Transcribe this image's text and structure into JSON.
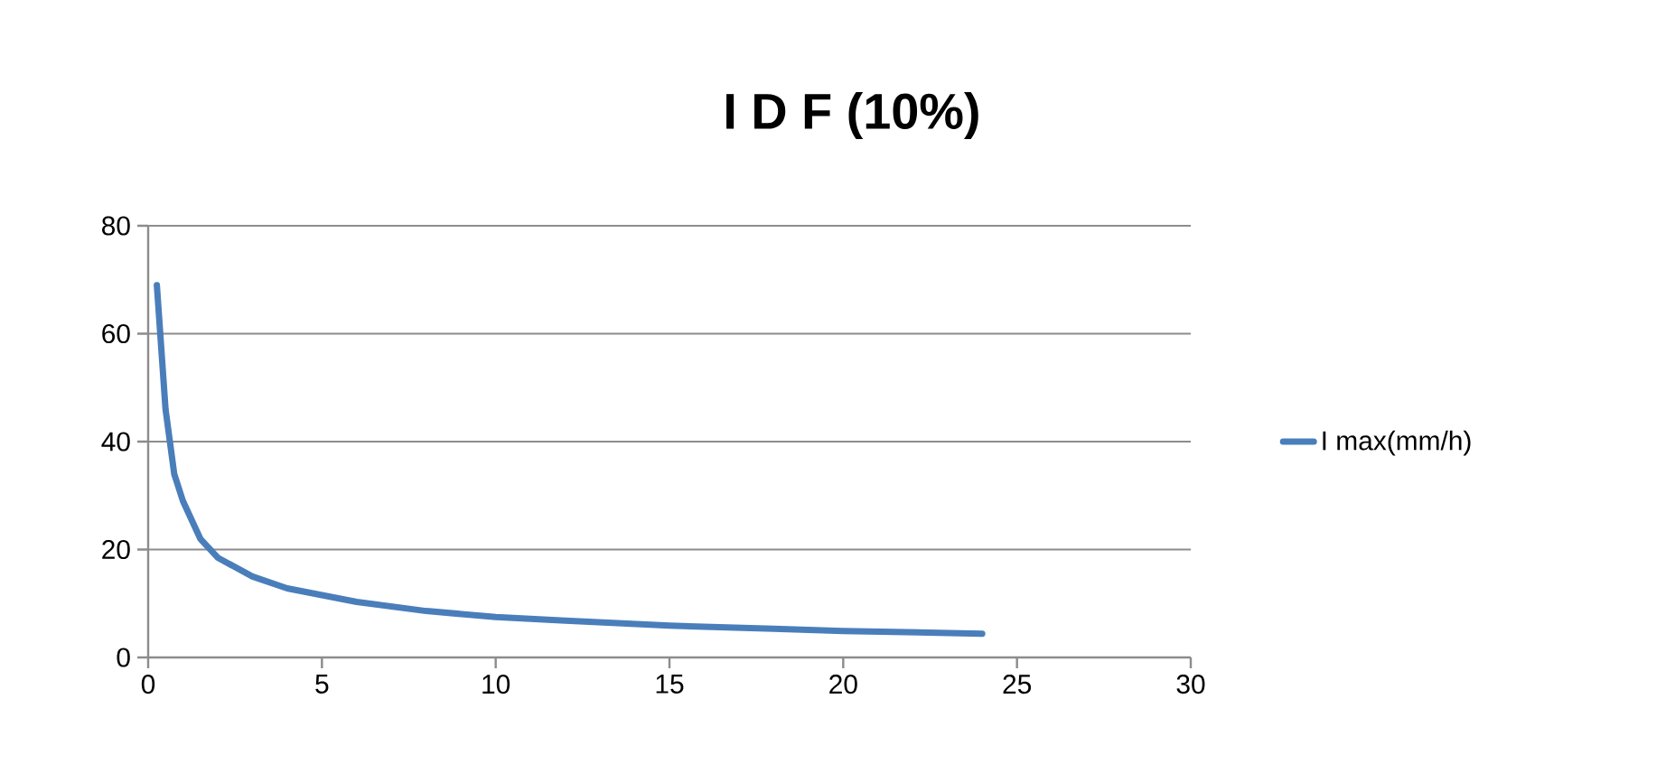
{
  "chart_data": {
    "type": "line",
    "title": "I D F (10%)",
    "x": [
      0.25,
      0.5,
      0.75,
      1,
      1.5,
      2,
      3,
      4,
      6,
      8,
      10,
      12,
      15,
      18,
      20,
      24
    ],
    "series": [
      {
        "name": "I max(mm/h)",
        "color": "#4a7ebb",
        "values": [
          69,
          46,
          34,
          29,
          22,
          18.5,
          15,
          12.8,
          10.3,
          8.6,
          7.5,
          6.8,
          5.9,
          5.3,
          4.9,
          4.4
        ]
      }
    ],
    "xlim": [
      0,
      30
    ],
    "xticks": [
      0,
      5,
      10,
      15,
      20,
      25,
      30
    ],
    "ylim": [
      0,
      80
    ],
    "yticks": [
      0,
      20,
      40,
      60,
      80
    ],
    "grid": "y",
    "legend": "right",
    "marker": "none",
    "line_style": "solid"
  }
}
